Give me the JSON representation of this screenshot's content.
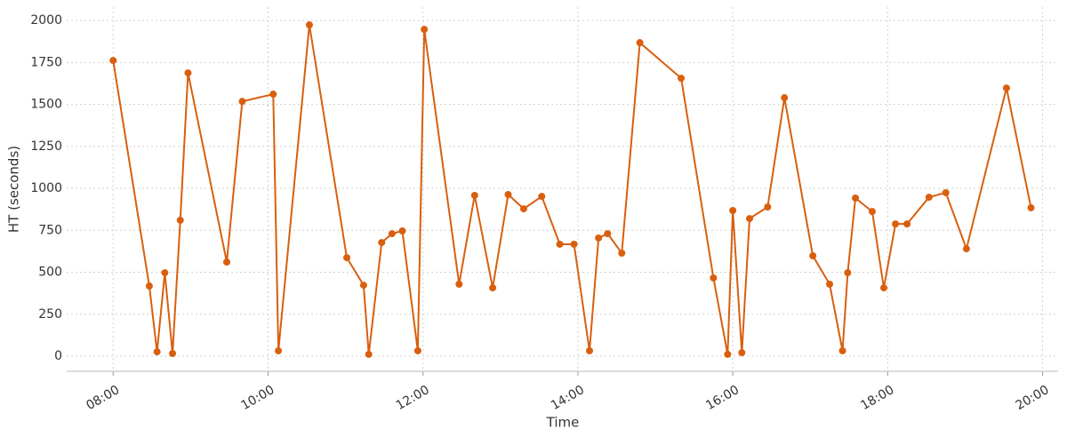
{
  "chart_data": {
    "type": "line",
    "x_label": "Time",
    "y_label": "HT (seconds)",
    "x": [
      "08:00",
      "08:28",
      "08:34",
      "08:40",
      "08:46",
      "08:52",
      "08:58",
      "09:28",
      "09:40",
      "10:04",
      "10:08",
      "10:32",
      "11:01",
      "11:14",
      "11:18",
      "11:28",
      "11:36",
      "11:44",
      "11:56",
      "12:01",
      "12:28",
      "12:40",
      "12:54",
      "13:06",
      "13:18",
      "13:32",
      "13:46",
      "13:57",
      "14:09",
      "14:16",
      "14:23",
      "14:34",
      "14:48",
      "15:20",
      "15:45",
      "15:56",
      "16:00",
      "16:07",
      "16:13",
      "16:27",
      "16:40",
      "17:02",
      "17:15",
      "17:25",
      "17:29",
      "17:35",
      "17:48",
      "17:57",
      "18:06",
      "18:15",
      "18:32",
      "18:45",
      "19:01",
      "19:32",
      "19:51"
    ],
    "values": [
      1762,
      418,
      26,
      497,
      16,
      810,
      1688,
      561,
      1518,
      1561,
      32,
      1974,
      587,
      423,
      11,
      677,
      730,
      746,
      32,
      1947,
      429,
      958,
      407,
      963,
      878,
      952,
      667,
      667,
      32,
      704,
      730,
      614,
      1868,
      1656,
      466,
      11,
      868,
      21,
      820,
      889,
      1540,
      598,
      429,
      32,
      497,
      942,
      862,
      407,
      788,
      788,
      947,
      974,
      640,
      1598,
      884
    ],
    "color": "#d95f0e",
    "xlim": [
      "07:24",
      "20:12"
    ],
    "xticks": [
      "08:00",
      "10:00",
      "12:00",
      "14:00",
      "16:00",
      "18:00",
      "20:00"
    ],
    "ylim": [
      -90,
      2080
    ],
    "yticks": [
      0,
      250,
      500,
      750,
      1000,
      1250,
      1500,
      1750,
      2000
    ],
    "grid": true
  }
}
